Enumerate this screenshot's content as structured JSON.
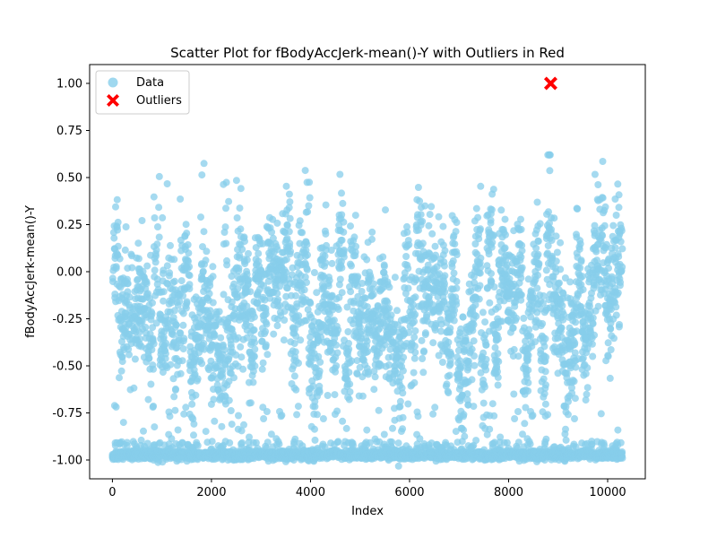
{
  "chart_data": {
    "type": "scatter",
    "title": "Scatter Plot for fBodyAccJerk-mean()-Y with Outliers in Red",
    "xlabel": "Index",
    "ylabel": "fBodyAccJerk-mean()-Y",
    "xlim": [
      -460,
      10760
    ],
    "ylim": [
      -1.1,
      1.1
    ],
    "xticks": [
      0,
      2000,
      4000,
      6000,
      8000,
      10000
    ],
    "yticks": [
      -1.0,
      -0.75,
      -0.5,
      -0.25,
      0.0,
      0.25,
      0.5,
      0.75,
      1.0
    ],
    "grid": false,
    "legend_position": "upper-left",
    "n_points": 10299,
    "series": [
      {
        "name": "Data",
        "color": "#87CEEB",
        "marker": "circle",
        "n": 10298,
        "sample_points": [
          [
            0,
            -0.99
          ],
          [
            50,
            -0.85
          ],
          [
            100,
            -0.2
          ],
          [
            150,
            0.25
          ],
          [
            200,
            -0.4
          ],
          [
            300,
            -0.62
          ],
          [
            400,
            0.15
          ],
          [
            450,
            0.38
          ],
          [
            500,
            -0.1
          ],
          [
            700,
            -0.3
          ],
          [
            800,
            0.05
          ],
          [
            1000,
            -0.2
          ],
          [
            1100,
            0.5
          ],
          [
            1300,
            0.42
          ],
          [
            1400,
            -0.9
          ],
          [
            1500,
            -0.3
          ],
          [
            1800,
            0.61
          ],
          [
            2000,
            -0.5
          ],
          [
            2200,
            -0.78
          ],
          [
            2500,
            0.58
          ],
          [
            2800,
            0.2
          ],
          [
            3000,
            -0.55
          ],
          [
            3300,
            -0.4
          ],
          [
            3500,
            -0.8
          ],
          [
            3700,
            0.1
          ],
          [
            3950,
            0.65
          ],
          [
            4200,
            -0.2
          ],
          [
            4550,
            0.62
          ],
          [
            4800,
            -0.7
          ],
          [
            5000,
            -0.3
          ],
          [
            5400,
            -0.6
          ],
          [
            5800,
            0.1
          ],
          [
            6000,
            -0.4
          ],
          [
            6400,
            -0.2
          ],
          [
            6800,
            -0.5
          ],
          [
            7000,
            0.2
          ],
          [
            7500,
            -0.3
          ],
          [
            7650,
            0.55
          ],
          [
            8000,
            -0.7
          ],
          [
            8300,
            0.35
          ],
          [
            8500,
            -0.2
          ],
          [
            8850,
            0.72
          ],
          [
            9000,
            -0.4
          ],
          [
            9200,
            0.2
          ],
          [
            9500,
            -0.6
          ],
          [
            9700,
            0.4
          ],
          [
            9850,
            0.7
          ],
          [
            10000,
            -0.3
          ],
          [
            10200,
            -0.5
          ],
          [
            10299,
            -0.99
          ]
        ]
      },
      {
        "name": "Outliers",
        "color": "#FF0000",
        "marker": "x",
        "points": [
          [
            8850,
            1.0
          ]
        ]
      }
    ]
  }
}
